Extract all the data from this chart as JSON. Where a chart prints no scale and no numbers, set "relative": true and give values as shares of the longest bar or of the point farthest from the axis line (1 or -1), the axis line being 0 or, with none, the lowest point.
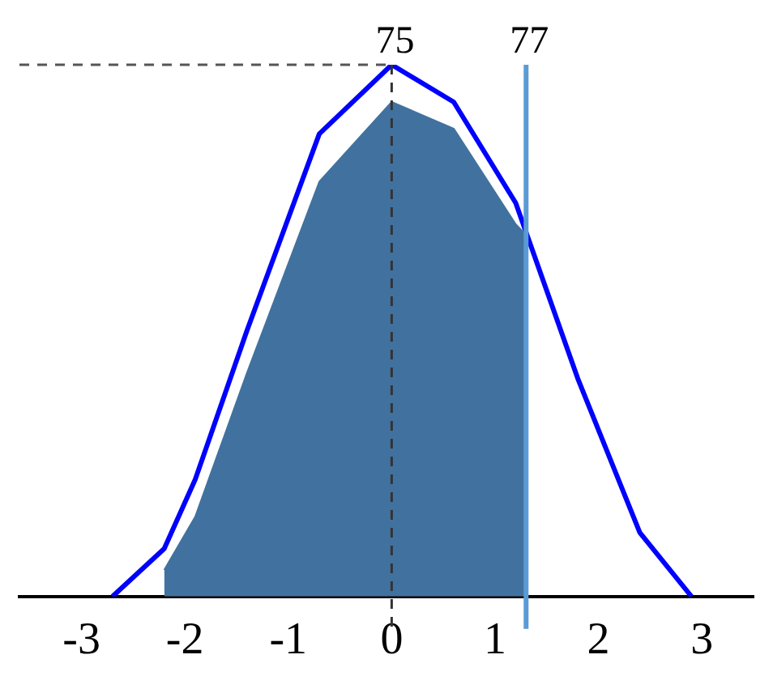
{
  "chart_data": {
    "type": "line",
    "relative": true,
    "xlim": [
      -3.6,
      3.5
    ],
    "xticks": [
      -3,
      -2,
      -1,
      0,
      1,
      2,
      3
    ],
    "grid": false,
    "legend": false,
    "marker": "none",
    "series": [
      {
        "type": "area",
        "color": "#41729f",
        "x": [
          -2.2,
          -1.9,
          -1.4,
          -0.7,
          0,
          0.6,
          1.2,
          1.3
        ],
        "values": [
          0.05,
          0.15,
          0.42,
          0.78,
          0.93,
          0.88,
          0.7,
          0.68
        ]
      },
      {
        "color": "#0000ff",
        "x": [
          -2.7,
          -2.2,
          -1.9,
          -1.4,
          -0.7,
          0,
          0.6,
          1.2,
          1.8,
          2.4,
          2.9
        ],
        "values": [
          0,
          0.09,
          0.22,
          0.5,
          0.87,
          1,
          0.93,
          0.74,
          0.41,
          0.12,
          0
        ]
      }
    ],
    "ref_lines": [
      {
        "axis": "x",
        "value": 0,
        "color": "#333333",
        "line_style": "dashed"
      },
      {
        "axis": "x",
        "value": 1.3,
        "color": "#5b9bd5",
        "line_style": "solid"
      },
      {
        "axis": "y",
        "value": 1,
        "color": "#555555",
        "line_style": "dashed"
      }
    ],
    "annotations": [
      "75",
      "77"
    ]
  }
}
